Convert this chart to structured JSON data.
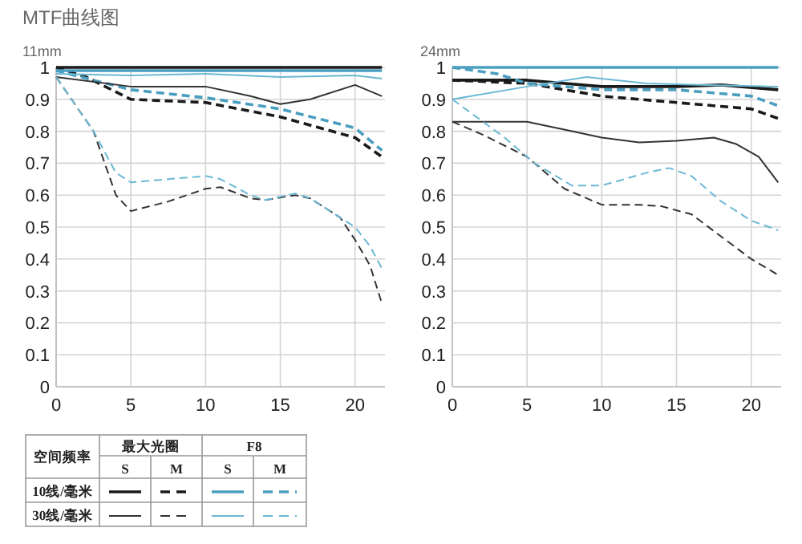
{
  "chart_data": [
    {
      "type": "line",
      "title": "MTF曲线图",
      "subtitle": "11mm",
      "xlim": [
        0,
        22
      ],
      "ylim": [
        0,
        1
      ],
      "xticks": [
        0,
        5,
        10,
        15,
        20
      ],
      "yticks": [
        0,
        0.1,
        0.2,
        0.3,
        0.4,
        0.5,
        0.6,
        0.7,
        0.8,
        0.9,
        1
      ],
      "grid": true,
      "marker": "none",
      "series": [
        {
          "color": "#1a1a1a",
          "line_style": "solid",
          "x": [
            0,
            5,
            10,
            15,
            20,
            21.8
          ],
          "values": [
            1,
            1,
            1,
            1,
            1,
            1
          ]
        },
        {
          "color": "#1a1a1a",
          "line_style": "dashed",
          "x": [
            0,
            2,
            5,
            10,
            15,
            20,
            21.8
          ],
          "values": [
            1,
            0.97,
            0.9,
            0.89,
            0.845,
            0.78,
            0.72
          ]
        },
        {
          "color": "#4a9fc0",
          "line_style": "solid",
          "x": [
            0,
            5,
            10,
            15,
            20,
            21.8
          ],
          "values": [
            0.99,
            0.99,
            0.99,
            0.99,
            0.99,
            0.99
          ]
        },
        {
          "color": "#4a9fc0",
          "line_style": "dashed",
          "x": [
            0,
            5,
            10,
            15,
            20,
            21.8
          ],
          "values": [
            0.99,
            0.93,
            0.905,
            0.87,
            0.81,
            0.74
          ]
        },
        {
          "color": "#333333",
          "line_style": "solid",
          "x": [
            0,
            5,
            10,
            13,
            15,
            17,
            20,
            21.8
          ],
          "values": [
            0.97,
            0.94,
            0.94,
            0.91,
            0.885,
            0.9,
            0.945,
            0.91
          ]
        },
        {
          "color": "#333333",
          "line_style": "dashed",
          "x": [
            0,
            2.5,
            4,
            5,
            7.5,
            10,
            11,
            13,
            14,
            16,
            17,
            19,
            20,
            21,
            21.8
          ],
          "values": [
            0.97,
            0.8,
            0.6,
            0.55,
            0.58,
            0.62,
            0.625,
            0.59,
            0.585,
            0.6,
            0.59,
            0.53,
            0.46,
            0.38,
            0.26
          ]
        },
        {
          "color": "#6bb8d4",
          "line_style": "solid",
          "x": [
            0,
            5,
            10,
            15,
            20,
            21.8
          ],
          "values": [
            0.98,
            0.975,
            0.98,
            0.97,
            0.975,
            0.965
          ]
        },
        {
          "color": "#6bb8d4",
          "line_style": "dashed",
          "x": [
            0,
            2.5,
            4,
            5,
            7.5,
            10,
            11,
            13,
            14,
            16,
            17,
            19,
            20,
            21,
            21.8
          ],
          "values": [
            0.97,
            0.8,
            0.67,
            0.64,
            0.65,
            0.66,
            0.65,
            0.6,
            0.585,
            0.605,
            0.59,
            0.53,
            0.5,
            0.44,
            0.37
          ]
        }
      ]
    },
    {
      "type": "line",
      "subtitle": "24mm",
      "xlim": [
        0,
        22
      ],
      "ylim": [
        0,
        1
      ],
      "xticks": [
        0,
        5,
        10,
        15,
        20
      ],
      "yticks": [
        0,
        0.1,
        0.2,
        0.3,
        0.4,
        0.5,
        0.6,
        0.7,
        0.8,
        0.9,
        1
      ],
      "grid": true,
      "marker": "none",
      "series": [
        {
          "color": "#1a1a1a",
          "line_style": "solid",
          "x": [
            0,
            5,
            10,
            15,
            18,
            21.8
          ],
          "values": [
            0.96,
            0.96,
            0.94,
            0.94,
            0.945,
            0.93
          ]
        },
        {
          "color": "#1a1a1a",
          "line_style": "dashed",
          "x": [
            0,
            5,
            10,
            15,
            20,
            21.8
          ],
          "values": [
            0.96,
            0.95,
            0.91,
            0.89,
            0.87,
            0.84
          ]
        },
        {
          "color": "#4a9fc0",
          "line_style": "solid",
          "x": [
            0,
            5,
            10,
            15,
            20,
            21.8
          ],
          "values": [
            1,
            1,
            1,
            1,
            1,
            1
          ]
        },
        {
          "color": "#4a9fc0",
          "line_style": "dashed",
          "x": [
            0,
            3,
            5,
            10,
            15,
            20,
            21.8
          ],
          "values": [
            1,
            0.98,
            0.95,
            0.93,
            0.93,
            0.91,
            0.88
          ]
        },
        {
          "color": "#333333",
          "line_style": "solid",
          "x": [
            0,
            3,
            5,
            8,
            10,
            12.5,
            15,
            17.5,
            19,
            20.5,
            21.8
          ],
          "values": [
            0.83,
            0.83,
            0.83,
            0.8,
            0.78,
            0.765,
            0.77,
            0.78,
            0.76,
            0.72,
            0.64
          ]
        },
        {
          "color": "#333333",
          "line_style": "dashed",
          "x": [
            0,
            2,
            5,
            7.5,
            10,
            12.5,
            14,
            16,
            18,
            20,
            21.8
          ],
          "values": [
            0.83,
            0.79,
            0.72,
            0.62,
            0.57,
            0.57,
            0.565,
            0.54,
            0.47,
            0.4,
            0.35
          ]
        },
        {
          "color": "#6bb8d4",
          "line_style": "solid",
          "x": [
            0,
            5,
            9,
            13,
            17,
            21.8
          ],
          "values": [
            0.9,
            0.94,
            0.97,
            0.95,
            0.945,
            0.94
          ]
        },
        {
          "color": "#6bb8d4",
          "line_style": "dashed",
          "x": [
            0,
            3.5,
            5.5,
            8,
            10,
            13,
            14.5,
            16,
            18,
            20,
            21.8
          ],
          "values": [
            0.9,
            0.78,
            0.7,
            0.63,
            0.63,
            0.67,
            0.685,
            0.66,
            0.58,
            0.52,
            0.49
          ]
        }
      ]
    },
    {
      "type": "other",
      "annotations": [
        "空间频率",
        "最大光圈",
        "F8",
        "S",
        "M",
        "S",
        "M",
        "10线/毫米",
        "30线/毫米"
      ]
    }
  ]
}
